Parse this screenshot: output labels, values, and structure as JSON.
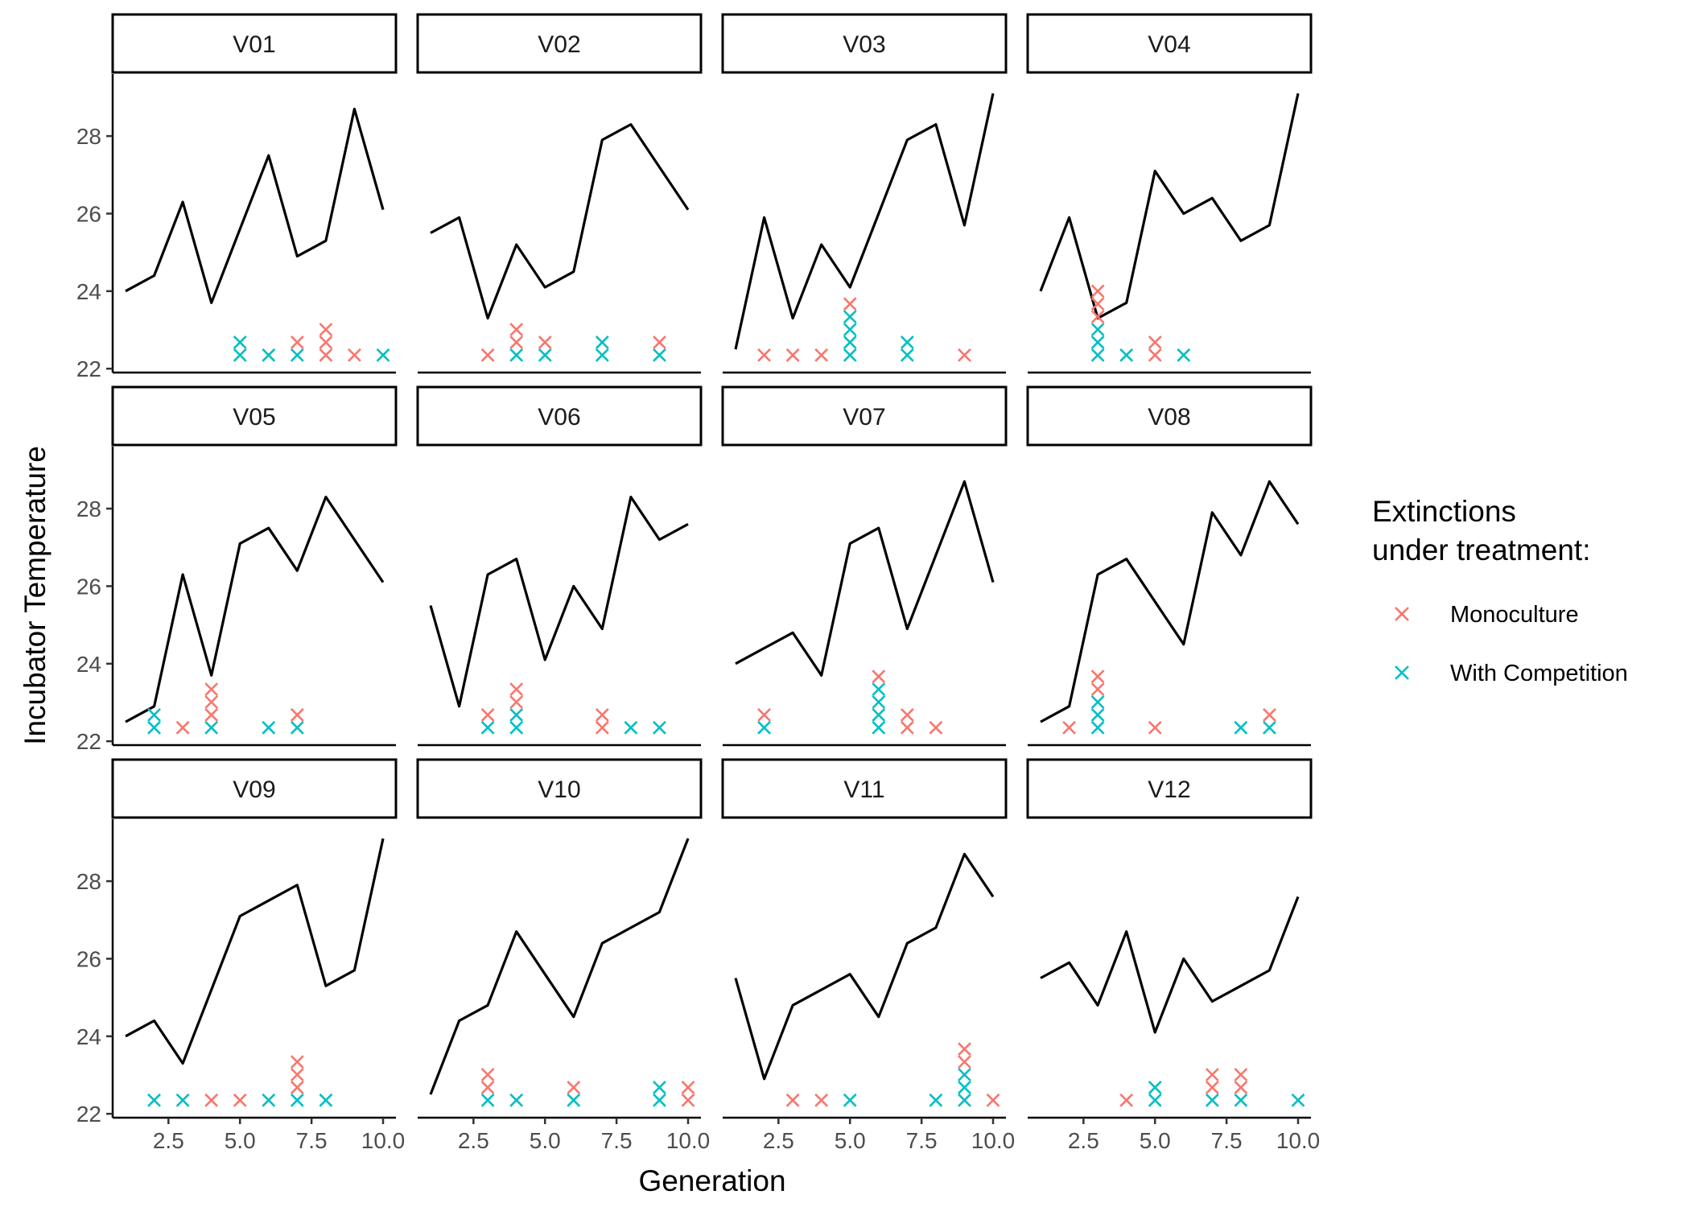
{
  "chart_data": {
    "type": "line",
    "facets": [
      "V01",
      "V02",
      "V03",
      "V04",
      "V05",
      "V06",
      "V07",
      "V08",
      "V09",
      "V10",
      "V11",
      "V12"
    ],
    "x": [
      1,
      2,
      3,
      4,
      5,
      6,
      7,
      8,
      9,
      10
    ],
    "xlabel": "Generation",
    "ylabel": "Incubator Temperature",
    "xlim": [
      0.55,
      10.45
    ],
    "ylim": [
      21.9,
      29.6
    ],
    "xticks": [
      2.5,
      5.0,
      7.5,
      10.0
    ],
    "xtick_labels": [
      "2.5",
      "5.0",
      "7.5",
      "10.0"
    ],
    "yticks": [
      22,
      24,
      26,
      28
    ],
    "ytick_labels": [
      "22",
      "24",
      "26",
      "28"
    ],
    "grid": false,
    "legend": {
      "title": "Extinctions\nunder treatment:",
      "placement": "right",
      "entries": [
        {
          "label": "Monoculture",
          "color": "#F8766D"
        },
        {
          "label": "With Competition",
          "color": "#00BFC4"
        }
      ]
    },
    "line_color": "#000000",
    "extinction_base_y": 22.35,
    "extinction_step_y": 0.33,
    "series": [
      {
        "facet": "V01",
        "temperature": [
          24.0,
          24.4,
          26.3,
          23.7,
          25.6,
          27.5,
          24.9,
          25.3,
          28.7,
          26.1
        ],
        "extinctions": [
          [
            5,
            "With Competition"
          ],
          [
            5,
            "With Competition"
          ],
          [
            6,
            "With Competition"
          ],
          [
            7,
            "With Competition"
          ],
          [
            7,
            "Monoculture"
          ],
          [
            8,
            "Monoculture"
          ],
          [
            8,
            "Monoculture"
          ],
          [
            8,
            "Monoculture"
          ],
          [
            9,
            "Monoculture"
          ],
          [
            10,
            "With Competition"
          ]
        ]
      },
      {
        "facet": "V02",
        "temperature": [
          25.5,
          25.9,
          23.3,
          25.2,
          24.1,
          24.5,
          27.9,
          28.3,
          27.2,
          26.1
        ],
        "extinctions": [
          [
            3,
            "Monoculture"
          ],
          [
            4,
            "With Competition"
          ],
          [
            4,
            "Monoculture"
          ],
          [
            4,
            "Monoculture"
          ],
          [
            5,
            "With Competition"
          ],
          [
            5,
            "Monoculture"
          ],
          [
            7,
            "With Competition"
          ],
          [
            7,
            "With Competition"
          ],
          [
            9,
            "With Competition"
          ],
          [
            9,
            "Monoculture"
          ]
        ]
      },
      {
        "facet": "V03",
        "temperature": [
          22.5,
          25.9,
          23.3,
          25.2,
          24.1,
          26.0,
          27.9,
          28.3,
          25.7,
          29.1
        ],
        "extinctions": [
          [
            2,
            "Monoculture"
          ],
          [
            3,
            "Monoculture"
          ],
          [
            4,
            "Monoculture"
          ],
          [
            5,
            "With Competition"
          ],
          [
            5,
            "With Competition"
          ],
          [
            5,
            "With Competition"
          ],
          [
            5,
            "With Competition"
          ],
          [
            5,
            "Monoculture"
          ],
          [
            7,
            "With Competition"
          ],
          [
            7,
            "With Competition"
          ],
          [
            9,
            "Monoculture"
          ]
        ]
      },
      {
        "facet": "V04",
        "temperature": [
          24.0,
          25.9,
          23.3,
          23.7,
          27.1,
          26.0,
          26.4,
          25.3,
          25.7,
          29.1
        ],
        "extinctions": [
          [
            3,
            "With Competition"
          ],
          [
            3,
            "With Competition"
          ],
          [
            3,
            "With Competition"
          ],
          [
            3,
            "Monoculture"
          ],
          [
            3,
            "Monoculture"
          ],
          [
            3,
            "Monoculture"
          ],
          [
            4,
            "With Competition"
          ],
          [
            5,
            "Monoculture"
          ],
          [
            5,
            "Monoculture"
          ],
          [
            6,
            "With Competition"
          ]
        ]
      },
      {
        "facet": "V05",
        "temperature": [
          22.5,
          22.9,
          26.3,
          23.7,
          27.1,
          27.5,
          26.4,
          28.3,
          27.2,
          26.1
        ],
        "extinctions": [
          [
            2,
            "With Competition"
          ],
          [
            2,
            "With Competition"
          ],
          [
            3,
            "Monoculture"
          ],
          [
            4,
            "With Competition"
          ],
          [
            4,
            "Monoculture"
          ],
          [
            4,
            "Monoculture"
          ],
          [
            4,
            "Monoculture"
          ],
          [
            6,
            "With Competition"
          ],
          [
            7,
            "With Competition"
          ],
          [
            7,
            "Monoculture"
          ]
        ]
      },
      {
        "facet": "V06",
        "temperature": [
          25.5,
          22.9,
          26.3,
          26.7,
          24.1,
          26.0,
          24.9,
          28.3,
          27.2,
          27.6
        ],
        "extinctions": [
          [
            3,
            "With Competition"
          ],
          [
            3,
            "Monoculture"
          ],
          [
            4,
            "With Competition"
          ],
          [
            4,
            "With Competition"
          ],
          [
            4,
            "Monoculture"
          ],
          [
            4,
            "Monoculture"
          ],
          [
            7,
            "Monoculture"
          ],
          [
            7,
            "Monoculture"
          ],
          [
            8,
            "With Competition"
          ],
          [
            9,
            "With Competition"
          ]
        ]
      },
      {
        "facet": "V07",
        "temperature": [
          24.0,
          24.4,
          24.8,
          23.7,
          27.1,
          27.5,
          24.9,
          26.8,
          28.7,
          26.1
        ],
        "extinctions": [
          [
            2,
            "With Competition"
          ],
          [
            2,
            "Monoculture"
          ],
          [
            6,
            "With Competition"
          ],
          [
            6,
            "With Competition"
          ],
          [
            6,
            "With Competition"
          ],
          [
            6,
            "With Competition"
          ],
          [
            6,
            "Monoculture"
          ],
          [
            7,
            "Monoculture"
          ],
          [
            7,
            "Monoculture"
          ],
          [
            8,
            "Monoculture"
          ]
        ]
      },
      {
        "facet": "V08",
        "temperature": [
          22.5,
          22.9,
          26.3,
          26.7,
          25.6,
          24.5,
          27.9,
          26.8,
          28.7,
          27.6
        ],
        "extinctions": [
          [
            2,
            "Monoculture"
          ],
          [
            3,
            "With Competition"
          ],
          [
            3,
            "With Competition"
          ],
          [
            3,
            "With Competition"
          ],
          [
            3,
            "Monoculture"
          ],
          [
            3,
            "Monoculture"
          ],
          [
            5,
            "Monoculture"
          ],
          [
            8,
            "With Competition"
          ],
          [
            9,
            "With Competition"
          ],
          [
            9,
            "Monoculture"
          ]
        ]
      },
      {
        "facet": "V09",
        "temperature": [
          24.0,
          24.4,
          23.3,
          25.2,
          27.1,
          27.5,
          27.9,
          25.3,
          25.7,
          29.1
        ],
        "extinctions": [
          [
            2,
            "With Competition"
          ],
          [
            3,
            "With Competition"
          ],
          [
            4,
            "Monoculture"
          ],
          [
            5,
            "Monoculture"
          ],
          [
            6,
            "With Competition"
          ],
          [
            7,
            "With Competition"
          ],
          [
            7,
            "Monoculture"
          ],
          [
            7,
            "Monoculture"
          ],
          [
            7,
            "Monoculture"
          ],
          [
            8,
            "With Competition"
          ]
        ]
      },
      {
        "facet": "V10",
        "temperature": [
          22.5,
          24.4,
          24.8,
          26.7,
          25.6,
          24.5,
          26.4,
          26.8,
          27.2,
          29.1
        ],
        "extinctions": [
          [
            3,
            "With Competition"
          ],
          [
            3,
            "Monoculture"
          ],
          [
            3,
            "Monoculture"
          ],
          [
            4,
            "With Competition"
          ],
          [
            6,
            "With Competition"
          ],
          [
            6,
            "Monoculture"
          ],
          [
            9,
            "With Competition"
          ],
          [
            9,
            "With Competition"
          ],
          [
            10,
            "Monoculture"
          ],
          [
            10,
            "Monoculture"
          ]
        ]
      },
      {
        "facet": "V11",
        "temperature": [
          25.5,
          22.9,
          24.8,
          25.2,
          25.6,
          24.5,
          26.4,
          26.8,
          28.7,
          27.6
        ],
        "extinctions": [
          [
            3,
            "Monoculture"
          ],
          [
            4,
            "Monoculture"
          ],
          [
            5,
            "With Competition"
          ],
          [
            8,
            "With Competition"
          ],
          [
            9,
            "With Competition"
          ],
          [
            9,
            "With Competition"
          ],
          [
            9,
            "With Competition"
          ],
          [
            9,
            "Monoculture"
          ],
          [
            9,
            "Monoculture"
          ],
          [
            10,
            "Monoculture"
          ]
        ]
      },
      {
        "facet": "V12",
        "temperature": [
          25.5,
          25.9,
          24.8,
          26.7,
          24.1,
          26.0,
          24.9,
          25.3,
          25.7,
          27.6
        ],
        "extinctions": [
          [
            4,
            "Monoculture"
          ],
          [
            5,
            "With Competition"
          ],
          [
            5,
            "With Competition"
          ],
          [
            7,
            "With Competition"
          ],
          [
            7,
            "Monoculture"
          ],
          [
            7,
            "Monoculture"
          ],
          [
            8,
            "With Competition"
          ],
          [
            8,
            "Monoculture"
          ],
          [
            8,
            "Monoculture"
          ],
          [
            10,
            "With Competition"
          ]
        ]
      }
    ]
  }
}
